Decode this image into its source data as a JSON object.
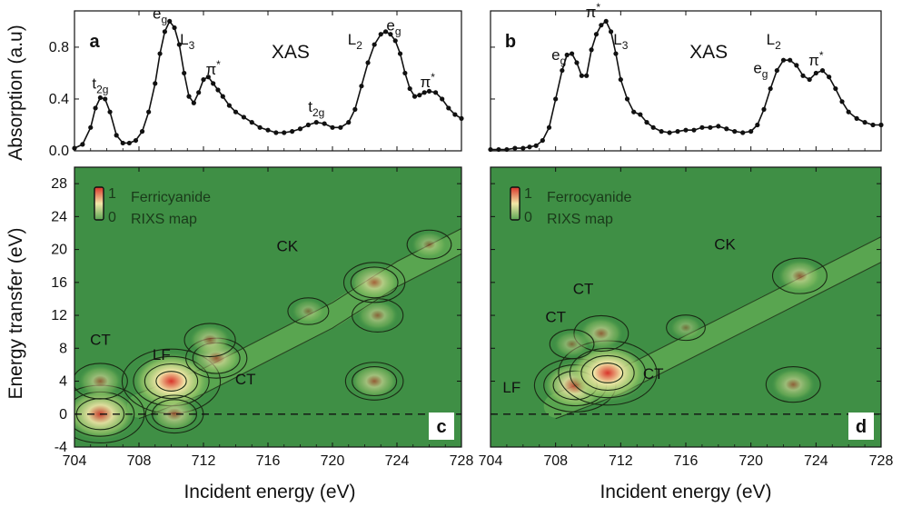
{
  "figure": {
    "y_axis_top": "Absorption (a.u)",
    "y_axis_bottom": "Energy transfer (eV)",
    "x_axis": "Incident energy (eV)"
  },
  "colors": {
    "map_background": "#3f8f45",
    "map_high": "#d8342a",
    "map_mid": "#f2e7a8",
    "contour": "#1a2a14",
    "xas_line": "#111111"
  },
  "chart_data": [
    {
      "panel": "a",
      "type": "line",
      "title": "XAS",
      "x": [
        704.0,
        704.5,
        705.0,
        705.3,
        705.6,
        705.9,
        706.2,
        706.6,
        707.0,
        707.4,
        707.8,
        708.2,
        708.6,
        709.0,
        709.3,
        709.6,
        709.9,
        710.2,
        710.5,
        710.8,
        711.1,
        711.4,
        711.7,
        712.0,
        712.3,
        712.6,
        712.9,
        713.2,
        713.6,
        714.0,
        714.5,
        715.0,
        715.5,
        716.0,
        716.5,
        717.0,
        717.5,
        718.0,
        718.5,
        719.0,
        719.5,
        720.0,
        720.5,
        721.0,
        721.4,
        721.8,
        722.2,
        722.6,
        723.0,
        723.3,
        723.6,
        723.9,
        724.2,
        724.5,
        724.8,
        725.1,
        725.4,
        725.7,
        726.0,
        726.4,
        726.8,
        727.2,
        727.6,
        728.0
      ],
      "y": [
        0.02,
        0.05,
        0.18,
        0.33,
        0.41,
        0.4,
        0.3,
        0.12,
        0.06,
        0.06,
        0.08,
        0.15,
        0.3,
        0.52,
        0.75,
        0.92,
        1.0,
        0.95,
        0.82,
        0.6,
        0.42,
        0.37,
        0.45,
        0.55,
        0.57,
        0.52,
        0.47,
        0.42,
        0.35,
        0.3,
        0.26,
        0.22,
        0.18,
        0.16,
        0.14,
        0.14,
        0.15,
        0.17,
        0.2,
        0.22,
        0.21,
        0.18,
        0.18,
        0.22,
        0.32,
        0.5,
        0.68,
        0.82,
        0.9,
        0.92,
        0.9,
        0.85,
        0.75,
        0.6,
        0.48,
        0.42,
        0.43,
        0.45,
        0.46,
        0.45,
        0.4,
        0.33,
        0.28,
        0.25
      ],
      "xlim": [
        704,
        728
      ],
      "ylim": [
        0,
        1.08
      ],
      "yticks": [
        "0.0",
        "0.4",
        "0.8"
      ],
      "annotations": [
        {
          "base": "t",
          "sub": "2g",
          "x": 705.6,
          "y": 0.48
        },
        {
          "base": "e",
          "sub": "g",
          "x": 709.3,
          "y": 1.02
        },
        {
          "base": "L",
          "sub": "3",
          "x": 711.0,
          "y": 0.82
        },
        {
          "base": "π",
          "sup": "*",
          "x": 712.6,
          "y": 0.59
        },
        {
          "base": "t",
          "sub": "2g",
          "x": 719.0,
          "y": 0.3
        },
        {
          "base": "L",
          "sub": "2",
          "x": 721.4,
          "y": 0.82
        },
        {
          "base": "e",
          "sub": "g",
          "x": 723.8,
          "y": 0.93
        },
        {
          "base": "π",
          "sup": "*",
          "x": 725.9,
          "y": 0.49
        }
      ]
    },
    {
      "panel": "b",
      "type": "line",
      "title": "XAS",
      "x": [
        704.0,
        704.5,
        705.0,
        705.5,
        706.0,
        706.4,
        706.8,
        707.2,
        707.6,
        708.0,
        708.4,
        708.7,
        709.0,
        709.3,
        709.6,
        709.9,
        710.2,
        710.5,
        710.8,
        711.1,
        711.4,
        711.7,
        712.0,
        712.4,
        712.8,
        713.2,
        713.6,
        714.0,
        714.5,
        715.0,
        715.5,
        716.0,
        716.5,
        717.0,
        717.5,
        718.0,
        718.5,
        719.0,
        719.5,
        720.0,
        720.4,
        720.8,
        721.2,
        721.6,
        722.0,
        722.4,
        722.8,
        723.2,
        723.6,
        724.0,
        724.4,
        724.8,
        725.2,
        725.6,
        726.0,
        726.5,
        727.0,
        727.5,
        728.0
      ],
      "y": [
        0.01,
        0.01,
        0.01,
        0.02,
        0.02,
        0.03,
        0.04,
        0.08,
        0.18,
        0.4,
        0.62,
        0.74,
        0.75,
        0.68,
        0.58,
        0.58,
        0.78,
        0.9,
        0.97,
        1.0,
        0.92,
        0.75,
        0.55,
        0.4,
        0.3,
        0.28,
        0.22,
        0.18,
        0.15,
        0.14,
        0.15,
        0.16,
        0.16,
        0.18,
        0.18,
        0.19,
        0.17,
        0.15,
        0.14,
        0.15,
        0.2,
        0.32,
        0.48,
        0.62,
        0.7,
        0.7,
        0.66,
        0.58,
        0.55,
        0.6,
        0.62,
        0.57,
        0.48,
        0.38,
        0.3,
        0.25,
        0.22,
        0.2,
        0.2
      ],
      "xlim": [
        704,
        728
      ],
      "ylim": [
        0,
        1.08
      ],
      "annotations": [
        {
          "base": "e",
          "sub": "g",
          "x": 708.2,
          "y": 0.7
        },
        {
          "base": "π",
          "sup": "*",
          "x": 710.3,
          "y": 1.03
        },
        {
          "base": "L",
          "sub": "3",
          "x": 712.0,
          "y": 0.82
        },
        {
          "base": "L",
          "sub": "2",
          "x": 721.4,
          "y": 0.82
        },
        {
          "base": "e",
          "sub": "g",
          "x": 720.6,
          "y": 0.6
        },
        {
          "base": "π",
          "sup": "*",
          "x": 724.0,
          "y": 0.66
        }
      ]
    },
    {
      "panel": "c",
      "type": "heatmap",
      "legend_title": [
        "Ferricyanide",
        "RIXS map"
      ],
      "legend_scale": [
        "1",
        "0"
      ],
      "xlim": [
        704,
        728
      ],
      "ylim": [
        -4,
        30
      ],
      "xticks": [
        "704",
        "708",
        "712",
        "716",
        "720",
        "724",
        "728"
      ],
      "yticks": [
        "-4",
        "0",
        "4",
        "8",
        "12",
        "16",
        "20",
        "24",
        "28"
      ],
      "features": [
        {
          "x": 705.6,
          "y": 0.0,
          "intensity": 0.85
        },
        {
          "x": 705.6,
          "y": 4.0,
          "intensity": 0.35
        },
        {
          "x": 710.0,
          "y": 4.0,
          "intensity": 1.0
        },
        {
          "x": 710.2,
          "y": 0.0,
          "intensity": 0.4
        },
        {
          "x": 712.8,
          "y": 6.8,
          "intensity": 0.45
        },
        {
          "x": 712.4,
          "y": 9.0,
          "intensity": 0.3
        },
        {
          "x": 722.6,
          "y": 4.0,
          "intensity": 0.4
        },
        {
          "x": 722.8,
          "y": 12.0,
          "intensity": 0.3
        },
        {
          "x": 722.6,
          "y": 16.0,
          "intensity": 0.45
        },
        {
          "x": 726.0,
          "y": 20.6,
          "intensity": 0.2
        },
        {
          "x": 718.5,
          "y": 12.5,
          "intensity": 0.15
        }
      ],
      "labels": [
        {
          "text": "CT",
          "x": 705.6,
          "y": 8.4
        },
        {
          "text": "LF",
          "x": 709.4,
          "y": 6.6
        },
        {
          "text": "CT",
          "x": 714.6,
          "y": 3.6
        },
        {
          "text": "CK",
          "x": 717.2,
          "y": 19.8
        }
      ]
    },
    {
      "panel": "d",
      "type": "heatmap",
      "legend_title": [
        "Ferrocyanide",
        "RIXS map"
      ],
      "legend_scale": [
        "1",
        "0"
      ],
      "xlim": [
        704,
        728
      ],
      "ylim": [
        -4,
        30
      ],
      "xticks": [
        "704",
        "708",
        "712",
        "716",
        "720",
        "724",
        "728"
      ],
      "features": [
        {
          "x": 709.2,
          "y": 3.5,
          "intensity": 0.75
        },
        {
          "x": 711.2,
          "y": 5.0,
          "intensity": 1.0
        },
        {
          "x": 710.8,
          "y": 9.8,
          "intensity": 0.35
        },
        {
          "x": 709.0,
          "y": 8.5,
          "intensity": 0.2
        },
        {
          "x": 722.6,
          "y": 3.6,
          "intensity": 0.35
        },
        {
          "x": 723.0,
          "y": 16.8,
          "intensity": 0.35
        },
        {
          "x": 716.0,
          "y": 10.5,
          "intensity": 0.12
        }
      ],
      "labels": [
        {
          "text": "CT",
          "x": 709.7,
          "y": 14.6
        },
        {
          "text": "CT",
          "x": 708.0,
          "y": 11.2
        },
        {
          "text": "CT",
          "x": 714.0,
          "y": 4.3
        },
        {
          "text": "LF",
          "x": 705.3,
          "y": 2.6
        },
        {
          "text": "CK",
          "x": 718.4,
          "y": 20.0
        }
      ]
    }
  ]
}
